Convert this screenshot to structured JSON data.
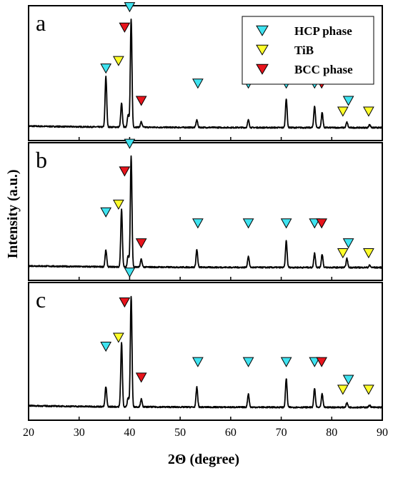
{
  "chart_data": {
    "type": "line",
    "xlabel": "2Θ (degree)",
    "ylabel": "Intensity (a.u.)",
    "xlim": [
      20,
      90
    ],
    "x_ticks": [
      20,
      30,
      40,
      50,
      60,
      70,
      80,
      90
    ],
    "y_ticks": false,
    "legend_position": "top-right inside panel a",
    "legend": [
      {
        "name": "HCP phase",
        "color": "#3fe3f0",
        "icon": "down-triangle"
      },
      {
        "name": "TiB",
        "color": "#ffff2a",
        "icon": "down-triangle"
      },
      {
        "name": "BCC phase",
        "color": "#e8141c",
        "icon": "down-triangle"
      }
    ],
    "panels": [
      {
        "label": "a",
        "peaks": [
          {
            "x": 35.3,
            "h": 0.47
          },
          {
            "x": 38.4,
            "h": 0.22
          },
          {
            "x": 39.7,
            "h": 0.12
          },
          {
            "x": 40.3,
            "h": 1.0
          },
          {
            "x": 42.3,
            "h": 0.05
          },
          {
            "x": 53.3,
            "h": 0.07
          },
          {
            "x": 63.5,
            "h": 0.07
          },
          {
            "x": 71.0,
            "h": 0.27
          },
          {
            "x": 76.6,
            "h": 0.2
          },
          {
            "x": 78.1,
            "h": 0.14
          },
          {
            "x": 83.0,
            "h": 0.05
          },
          {
            "x": 87.5,
            "h": 0.03
          }
        ],
        "markers": [
          {
            "phase": "HCP phase",
            "x": 35.3,
            "y": 0.55
          },
          {
            "phase": "TiB",
            "x": 37.8,
            "y": 0.62
          },
          {
            "phase": "BCC phase",
            "x": 39.0,
            "y": 0.93
          },
          {
            "phase": "HCP phase",
            "x": 40.0,
            "y": 1.12
          },
          {
            "phase": "BCC phase",
            "x": 42.3,
            "y": 0.25
          },
          {
            "phase": "HCP phase",
            "x": 53.5,
            "y": 0.41
          },
          {
            "phase": "HCP phase",
            "x": 63.5,
            "y": 0.41
          },
          {
            "phase": "HCP phase",
            "x": 71.0,
            "y": 0.41
          },
          {
            "phase": "HCP phase",
            "x": 76.6,
            "y": 0.41
          },
          {
            "phase": "BCC phase",
            "x": 78.0,
            "y": 0.41
          },
          {
            "phase": "HCP phase",
            "x": 83.3,
            "y": 0.25
          },
          {
            "phase": "TiB",
            "x": 82.2,
            "y": 0.15
          },
          {
            "phase": "TiB",
            "x": 87.3,
            "y": 0.15
          }
        ]
      },
      {
        "label": "b",
        "peaks": [
          {
            "x": 35.3,
            "h": 0.15
          },
          {
            "x": 38.4,
            "h": 0.52
          },
          {
            "x": 39.7,
            "h": 0.1
          },
          {
            "x": 40.3,
            "h": 1.0
          },
          {
            "x": 42.3,
            "h": 0.07
          },
          {
            "x": 53.3,
            "h": 0.16
          },
          {
            "x": 63.5,
            "h": 0.1
          },
          {
            "x": 71.0,
            "h": 0.24
          },
          {
            "x": 76.6,
            "h": 0.13
          },
          {
            "x": 78.1,
            "h": 0.12
          },
          {
            "x": 83.0,
            "h": 0.08
          },
          {
            "x": 87.5,
            "h": 0.02
          }
        ],
        "markers": [
          {
            "phase": "HCP phase",
            "x": 35.3,
            "y": 0.5
          },
          {
            "phase": "TiB",
            "x": 37.8,
            "y": 0.57
          },
          {
            "phase": "BCC phase",
            "x": 39.0,
            "y": 0.87
          },
          {
            "phase": "HCP phase",
            "x": 40.0,
            "y": 1.12
          },
          {
            "phase": "BCC phase",
            "x": 42.3,
            "y": 0.22
          },
          {
            "phase": "HCP phase",
            "x": 53.5,
            "y": 0.4
          },
          {
            "phase": "HCP phase",
            "x": 63.5,
            "y": 0.4
          },
          {
            "phase": "HCP phase",
            "x": 71.0,
            "y": 0.4
          },
          {
            "phase": "HCP phase",
            "x": 76.6,
            "y": 0.4
          },
          {
            "phase": "BCC phase",
            "x": 78.0,
            "y": 0.4
          },
          {
            "phase": "HCP phase",
            "x": 83.3,
            "y": 0.22
          },
          {
            "phase": "TiB",
            "x": 82.2,
            "y": 0.13
          },
          {
            "phase": "TiB",
            "x": 87.3,
            "y": 0.13
          }
        ]
      },
      {
        "label": "c",
        "peaks": [
          {
            "x": 35.3,
            "h": 0.18
          },
          {
            "x": 38.4,
            "h": 0.58
          },
          {
            "x": 39.7,
            "h": 0.08
          },
          {
            "x": 40.3,
            "h": 1.0
          },
          {
            "x": 42.3,
            "h": 0.07
          },
          {
            "x": 53.3,
            "h": 0.18
          },
          {
            "x": 63.5,
            "h": 0.12
          },
          {
            "x": 71.0,
            "h": 0.26
          },
          {
            "x": 76.6,
            "h": 0.17
          },
          {
            "x": 78.1,
            "h": 0.12
          },
          {
            "x": 83.0,
            "h": 0.04
          },
          {
            "x": 87.5,
            "h": 0.02
          }
        ],
        "markers": [
          {
            "phase": "HCP phase",
            "x": 35.3,
            "y": 0.55
          },
          {
            "phase": "TiB",
            "x": 37.8,
            "y": 0.63
          },
          {
            "phase": "BCC phase",
            "x": 39.0,
            "y": 0.95
          },
          {
            "phase": "HCP phase",
            "x": 40.0,
            "y": 1.22
          },
          {
            "phase": "BCC phase",
            "x": 42.3,
            "y": 0.27
          },
          {
            "phase": "HCP phase",
            "x": 53.5,
            "y": 0.41
          },
          {
            "phase": "HCP phase",
            "x": 63.5,
            "y": 0.41
          },
          {
            "phase": "HCP phase",
            "x": 71.0,
            "y": 0.41
          },
          {
            "phase": "HCP phase",
            "x": 76.6,
            "y": 0.41
          },
          {
            "phase": "BCC phase",
            "x": 78.0,
            "y": 0.41
          },
          {
            "phase": "HCP phase",
            "x": 83.3,
            "y": 0.25
          },
          {
            "phase": "TiB",
            "x": 82.2,
            "y": 0.16
          },
          {
            "phase": "TiB",
            "x": 87.3,
            "y": 0.16
          }
        ]
      }
    ]
  }
}
